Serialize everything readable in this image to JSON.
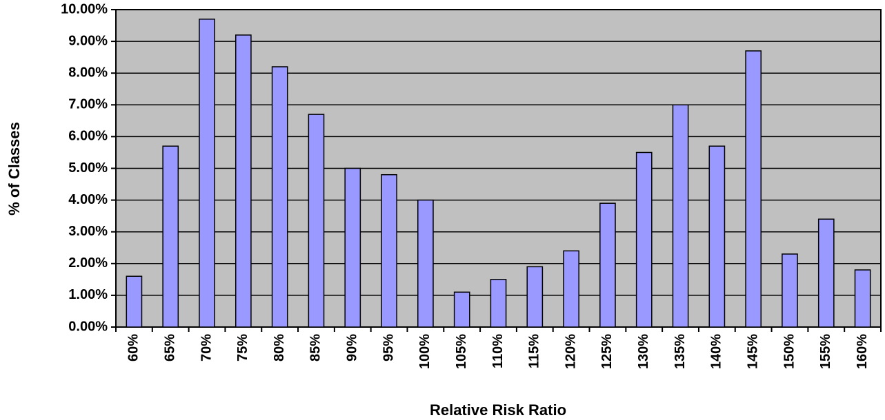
{
  "chart_data": {
    "type": "bar",
    "x_label": "Relative Risk Ratio",
    "y_label": "% of Classes",
    "categories": [
      "60%",
      "65%",
      "70%",
      "75%",
      "80%",
      "85%",
      "90%",
      "95%",
      "100%",
      "105%",
      "110%",
      "115%",
      "120%",
      "125%",
      "130%",
      "135%",
      "140%",
      "145%",
      "150%",
      "155%",
      "160%"
    ],
    "values": [
      1.6,
      5.7,
      9.7,
      9.2,
      8.2,
      6.7,
      5.0,
      4.8,
      4.0,
      1.1,
      1.5,
      1.9,
      2.4,
      3.9,
      5.5,
      7.0,
      5.7,
      8.7,
      2.3,
      3.4,
      1.8
    ],
    "color": "#9999ff",
    "ylim": [
      0,
      10
    ],
    "yticks": [
      {
        "value": 0,
        "label": "0.00%"
      },
      {
        "value": 1,
        "label": "1.00%"
      },
      {
        "value": 2,
        "label": "2.00%"
      },
      {
        "value": 3,
        "label": "3.00%"
      },
      {
        "value": 4,
        "label": "4.00%"
      },
      {
        "value": 5,
        "label": "5.00%"
      },
      {
        "value": 6,
        "label": "6.00%"
      },
      {
        "value": 7,
        "label": "7.00%"
      },
      {
        "value": 8,
        "label": "8.00%"
      },
      {
        "value": 9,
        "label": "9.00%"
      },
      {
        "value": 10,
        "label": "10.00%"
      }
    ],
    "grid": true
  }
}
